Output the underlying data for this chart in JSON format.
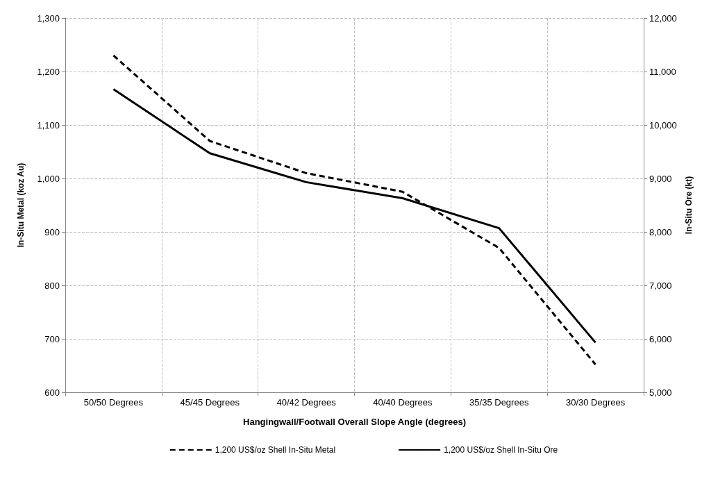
{
  "chart_data": {
    "type": "line",
    "xlabel": "Hangingwall/Footwall Overall Slope Angle (degrees)",
    "ylabel": "In-Situ Metal (koz Au)",
    "y2label": "In-Situ Ore (kt)",
    "categories": [
      "50/50 Degrees",
      "45/45 Degrees",
      "40/42 Degrees",
      "40/40 Degrees",
      "35/35 Degrees",
      "30/30 Degrees"
    ],
    "series": [
      {
        "name": "1,200 US$/oz Shell In-Situ Metal",
        "color": "#000000",
        "line_style": "dashed",
        "values": [
          1230,
          1070,
          1010,
          975,
          870,
          652
        ]
      },
      {
        "name": "1,200 US$/oz Shell In-Situ Ore",
        "color": "#000000",
        "line_style": "solid",
        "axis": "y2",
        "values": [
          10670,
          9470,
          8930,
          8630,
          8070,
          5930
        ]
      }
    ],
    "ylim": [
      600,
      1300
    ],
    "yticks": [
      600,
      700,
      800,
      900,
      {
        "value": 1000,
        "label": "1,000"
      },
      {
        "value": 1100,
        "label": "1,100"
      },
      {
        "value": 1200,
        "label": "1,200"
      },
      {
        "value": 1300,
        "label": "1,300"
      }
    ],
    "y2lim": [
      5000,
      12000
    ],
    "y2ticks": [
      {
        "value": 5000,
        "label": "5,000"
      },
      {
        "value": 6000,
        "label": "6,000"
      },
      {
        "value": 7000,
        "label": "7,000"
      },
      {
        "value": 8000,
        "label": "8,000"
      },
      {
        "value": 9000,
        "label": "9,000"
      },
      {
        "value": 10000,
        "label": "10,000"
      },
      {
        "value": 11000,
        "label": "11,000"
      },
      {
        "value": 12000,
        "label": "12,000"
      }
    ],
    "grid": true,
    "legend": "bottom",
    "marker": "none"
  }
}
